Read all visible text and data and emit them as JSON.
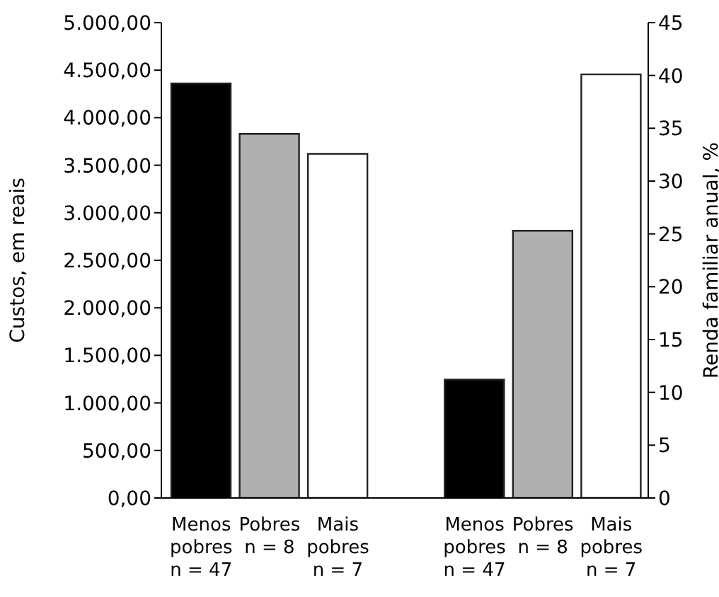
{
  "chart_data": {
    "type": "bar",
    "categories": [
      "Menos pobres n = 47",
      "Pobres n = 8",
      "Mais pobres n = 7",
      null,
      "Menos pobres n = 47",
      "Pobres n = 8",
      "Mais pobres n = 7"
    ],
    "series": [
      {
        "colors": [
          "#000000",
          "#b0b0b0",
          "#ffffff",
          null,
          null,
          null,
          null
        ],
        "values": [
          4360,
          3830,
          3620,
          null,
          null,
          null,
          null
        ]
      },
      {
        "axis": "y2",
        "colors": [
          null,
          null,
          null,
          null,
          "#000000",
          "#b0b0b0",
          "#ffffff"
        ],
        "values": [
          null,
          null,
          null,
          null,
          11.2,
          25.3,
          40.1
        ]
      }
    ],
    "ylabel": "Custos, em reais",
    "y2label": "Renda familiar anual, %",
    "ylim": [
      0,
      5000
    ],
    "yticks": [
      {
        "value": 0,
        "label": "0,00"
      },
      {
        "value": 500,
        "label": "500,00"
      },
      {
        "value": 1000,
        "label": "1.000,00"
      },
      {
        "value": 1500,
        "label": "1.500,00"
      },
      {
        "value": 2000,
        "label": "2.000,00"
      },
      {
        "value": 2500,
        "label": "2.500,00"
      },
      {
        "value": 3000,
        "label": "3.000,00"
      },
      {
        "value": 3500,
        "label": "3.500,00"
      },
      {
        "value": 4000,
        "label": "4.000,00"
      },
      {
        "value": 4500,
        "label": "4.500,00"
      },
      {
        "value": 5000,
        "label": "5.000,00"
      }
    ],
    "y2lim": [
      0,
      45
    ],
    "y2ticks": [
      0,
      5,
      10,
      15,
      20,
      25,
      30,
      35,
      40,
      45
    ],
    "grid": false,
    "legend": false
  }
}
